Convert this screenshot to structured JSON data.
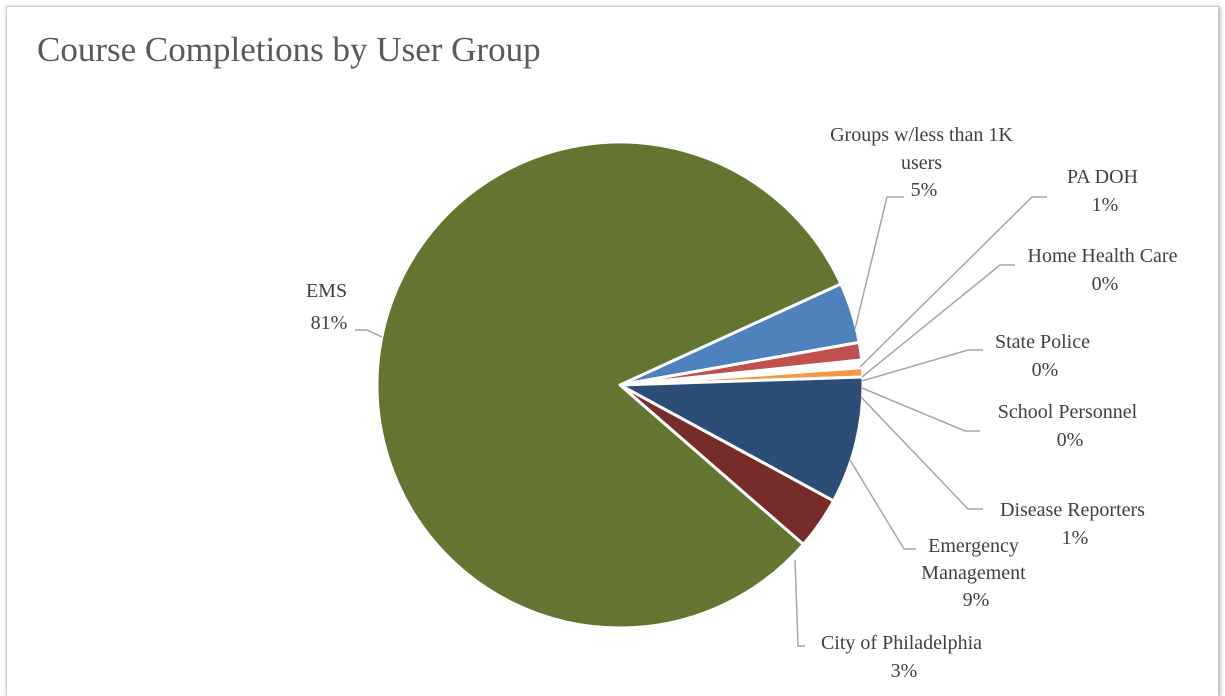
{
  "chart_data": {
    "type": "pie",
    "title": "Course Completions by User Group",
    "slices": [
      {
        "label": "EMS",
        "value": 81,
        "display": "81%",
        "color": "#637530"
      },
      {
        "label": "Groups w/less than 1K users",
        "value": 5,
        "display": "5%",
        "color": "#4f81bd"
      },
      {
        "label": "PA DOH",
        "value": 1,
        "display": "1%",
        "color": "#c0504d"
      },
      {
        "label": "Home Health Care",
        "value": 0,
        "display": "0%",
        "color": "#9bbb59"
      },
      {
        "label": "State Police",
        "value": 0,
        "display": "0%",
        "color": "#4bacc6"
      },
      {
        "label": "School Personnel",
        "value": 0,
        "display": "0%",
        "color": "#f79646"
      },
      {
        "label": "Disease Reporters",
        "value": 1,
        "display": "1%",
        "color": "#f79646"
      },
      {
        "label": "Emergency Management",
        "value": 9,
        "display": "9%",
        "color": "#2c4d75"
      },
      {
        "label": "City of Philadelphia",
        "value": 3,
        "display": "3%",
        "color": "#772c2a"
      }
    ],
    "legend": "none",
    "data_labels": "outside with leader lines"
  }
}
